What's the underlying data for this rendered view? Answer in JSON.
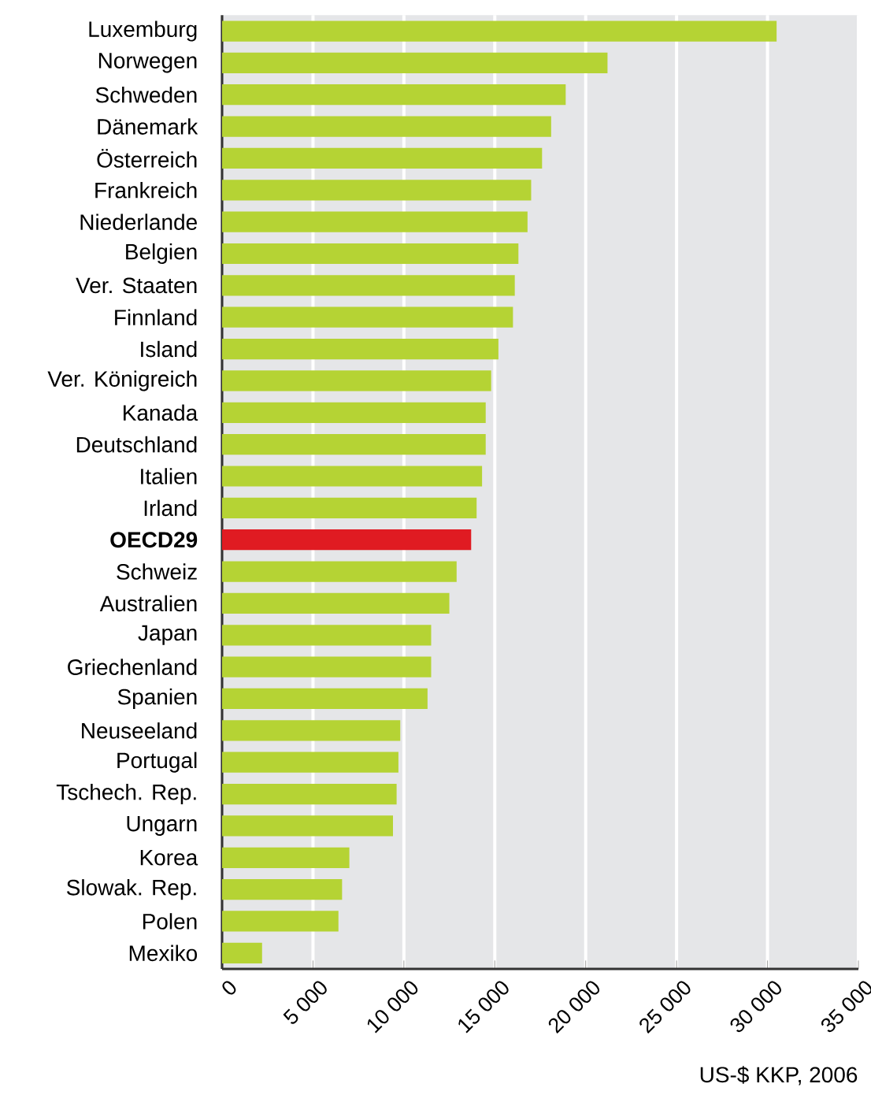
{
  "chart_data": {
    "type": "bar",
    "orientation": "horizontal",
    "xlabel": "US-$ KKP, 2006",
    "categories": [
      "Luxemburg",
      "Norwegen",
      "Schweden",
      "Dänemark",
      "Österreich",
      "Frankreich",
      "Niederlande",
      "Belgien",
      "Ver. Staaten",
      "Finnland",
      "Island",
      "Ver. Königreich",
      "Kanada",
      "Deutschland",
      "Italien",
      "Irland",
      "OECD29",
      "Schweiz",
      "Australien",
      "Japan",
      "Griechenland",
      "Spanien",
      "Neuseeland",
      "Portugal",
      "Tschech. Rep.",
      "Ungarn",
      "Korea",
      "Slowak. Rep.",
      "Polen",
      "Mexiko"
    ],
    "values": [
      30500,
      21200,
      18900,
      18100,
      17600,
      17000,
      16800,
      16300,
      16100,
      16000,
      15200,
      14800,
      14500,
      14500,
      14300,
      14000,
      13700,
      12900,
      12500,
      11500,
      11500,
      11300,
      9800,
      9700,
      9600,
      9400,
      7000,
      6600,
      6400,
      2200
    ],
    "colors": [
      "#b5d334",
      "#b5d334",
      "#b5d334",
      "#b5d334",
      "#b5d334",
      "#b5d334",
      "#b5d334",
      "#b5d334",
      "#b5d334",
      "#b5d334",
      "#b5d334",
      "#b5d334",
      "#b5d334",
      "#b5d334",
      "#b5d334",
      "#b5d334",
      "#e01b22",
      "#b5d334",
      "#b5d334",
      "#b5d334",
      "#b5d334",
      "#b5d334",
      "#b5d334",
      "#b5d334",
      "#b5d334",
      "#b5d334",
      "#b5d334",
      "#b5d334",
      "#b5d334",
      "#b5d334"
    ],
    "xlim": [
      0,
      35000
    ],
    "xticks": [
      0,
      {
        "value": 5000,
        "label": "5 000"
      },
      {
        "value": 10000,
        "label": "10 000"
      },
      {
        "value": 15000,
        "label": "15 000"
      },
      {
        "value": 20000,
        "label": "20 000"
      },
      {
        "value": 25000,
        "label": "25 000"
      },
      {
        "value": 30000,
        "label": "30 000"
      },
      {
        "value": 35000,
        "label": "35 000"
      }
    ],
    "grid": "x"
  }
}
